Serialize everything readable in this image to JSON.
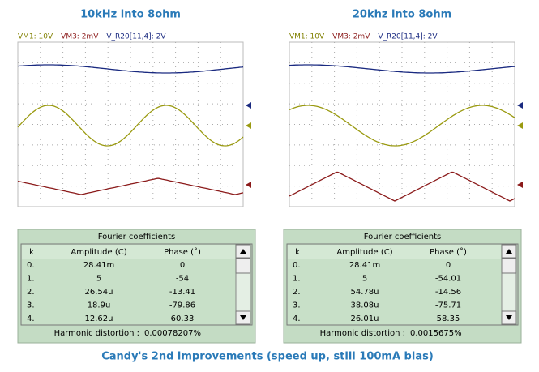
{
  "panels": [
    {
      "title": "10kHz into 8ohm",
      "legend": [
        "VM1: 10V",
        "VM3: 2mV",
        "V_R20[11,4]: 2V"
      ],
      "fourier": {
        "title": "Fourier coefficients",
        "columns": [
          "k",
          "Amplitude (C)",
          "Phase (˚)"
        ],
        "rows": [
          [
            "0.",
            "28.41m",
            "0"
          ],
          [
            "1.",
            "5",
            "-54"
          ],
          [
            "2.",
            "26.54u",
            "-13.41"
          ],
          [
            "3.",
            "18.9u",
            "-79.86"
          ],
          [
            "4.",
            "12.62u",
            "60.33"
          ]
        ],
        "distortion_label": "Harmonic distortion :",
        "distortion": "0.00078207%"
      }
    },
    {
      "title": "20khz into 8ohm",
      "legend": [
        "VM1: 10V",
        "VM3: 2mV",
        "V_R20[11,4]: 2V"
      ],
      "fourier": {
        "title": "Fourier coefficients",
        "columns": [
          "k",
          "Amplitude (C)",
          "Phase (˚)"
        ],
        "rows": [
          [
            "0.",
            "28.41m",
            "0"
          ],
          [
            "1.",
            "5",
            "-54.01"
          ],
          [
            "2.",
            "54.78u",
            "-14.56"
          ],
          [
            "3.",
            "38.08u",
            "-75.71"
          ],
          [
            "4.",
            "26.01u",
            "58.35"
          ]
        ],
        "distortion_label": "Harmonic distortion :",
        "distortion": "0.0015675%"
      }
    }
  ],
  "caption": "Candy's 2nd improvements (speed up, still 100mA bias)"
}
